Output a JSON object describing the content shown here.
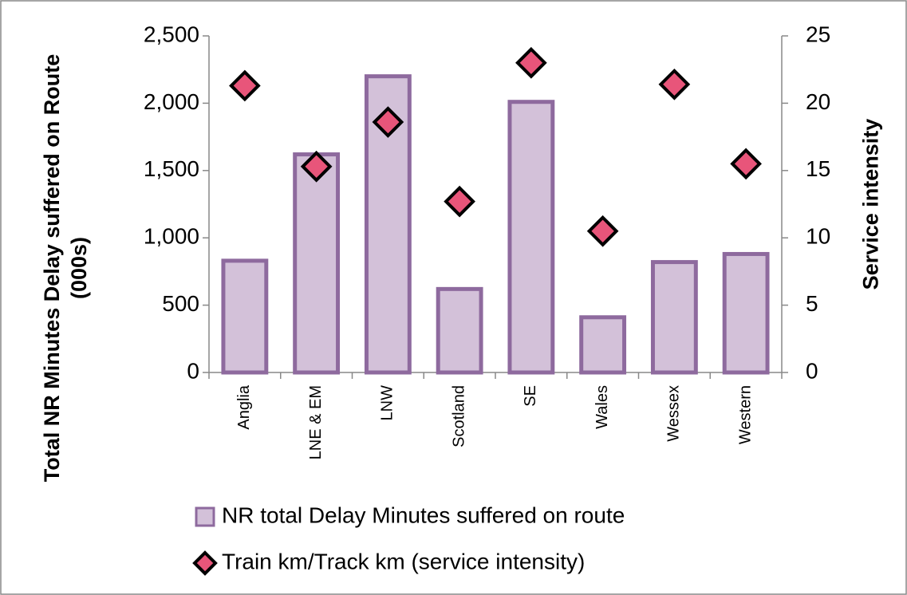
{
  "chart_data": {
    "type": "bar+scatter",
    "y_label": "Total NR Minutes Delay suffered on Route  (000s)",
    "y2_label": "Service intensity",
    "categories": [
      "Anglia",
      "LNE & EM",
      "LNW",
      "Scotland",
      "SE",
      "Wales",
      "Wessex",
      "Western"
    ],
    "series": [
      {
        "name": "NR total Delay Minutes suffered on route",
        "type": "bar",
        "color": "#d3c1d9",
        "edge_color": "#8e6a9e",
        "values": [
          830,
          1620,
          2200,
          620,
          2010,
          410,
          820,
          880
        ]
      },
      {
        "name": "Train km/Track km (service intensity)",
        "type": "scatter",
        "color": "#e8557a",
        "edge_color": "#000000",
        "axis": "y2",
        "values": [
          21.3,
          15.3,
          18.6,
          12.7,
          23.0,
          10.5,
          21.4,
          15.5
        ]
      }
    ],
    "ylim": [
      0,
      2500
    ],
    "yticks": [
      0,
      500,
      {
        "value": 1000,
        "label": "1,000"
      },
      {
        "value": 1500,
        "label": "1,500"
      },
      {
        "value": 2000,
        "label": "2,000"
      },
      {
        "value": 2500,
        "label": "2,500"
      }
    ],
    "y2lim": [
      0,
      25
    ],
    "y2ticks": [
      0,
      5,
      10,
      15,
      20,
      25
    ],
    "grid": false
  }
}
